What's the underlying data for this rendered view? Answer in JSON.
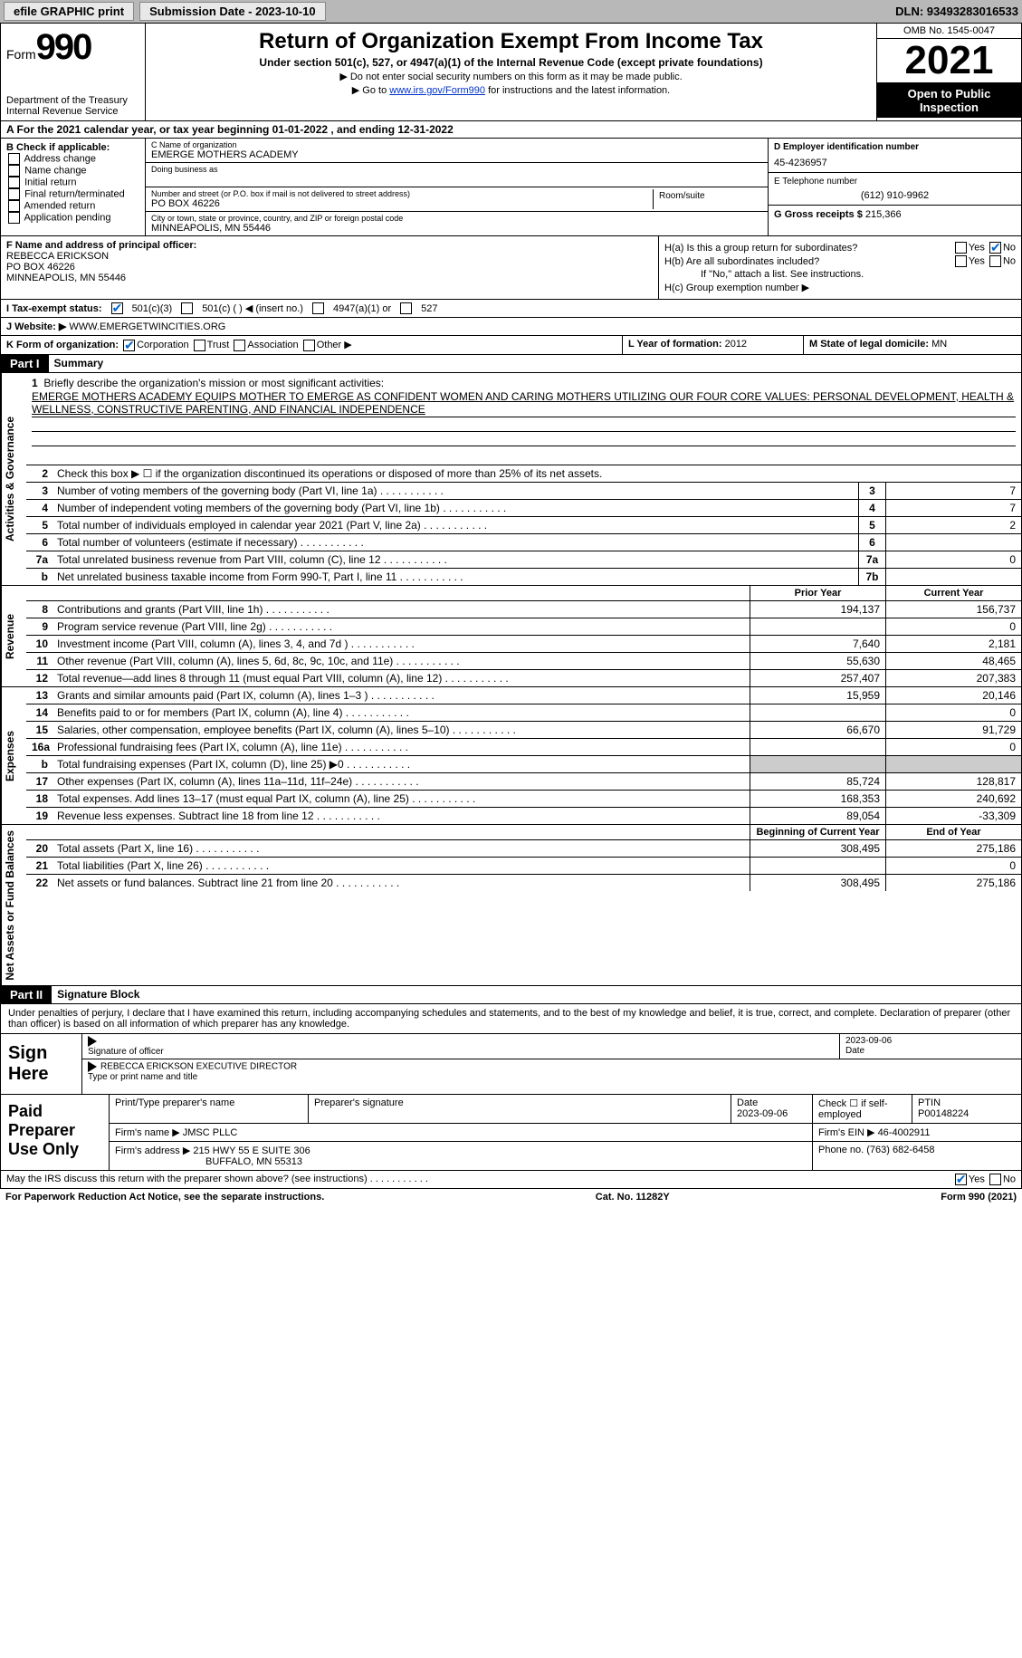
{
  "topbar": {
    "efile": "efile GRAPHIC print",
    "submission_label": "Submission Date - 2023-10-10",
    "dln_label": "DLN: 93493283016533"
  },
  "header": {
    "form_prefix": "Form",
    "form_number": "990",
    "dept": "Department of the Treasury\nInternal Revenue Service",
    "title": "Return of Organization Exempt From Income Tax",
    "subtitle": "Under section 501(c), 527, or 4947(a)(1) of the Internal Revenue Code (except private foundations)",
    "note1": "▶ Do not enter social security numbers on this form as it may be made public.",
    "note2_prefix": "▶ Go to ",
    "note2_link": "www.irs.gov/Form990",
    "note2_suffix": " for instructions and the latest information.",
    "omb": "OMB No. 1545-0047",
    "year": "2021",
    "open": "Open to Public Inspection"
  },
  "calendar_row": "A For the 2021 calendar year, or tax year beginning 01-01-2022    , and ending 12-31-2022",
  "box_b": {
    "label": "B Check if applicable:",
    "items": [
      "Address change",
      "Name change",
      "Initial return",
      "Final return/terminated",
      "Amended return",
      "Application pending"
    ]
  },
  "box_c": {
    "name_label": "C Name of organization",
    "org_name": "EMERGE MOTHERS ACADEMY",
    "dba_label": "Doing business as",
    "addr_label": "Number and street (or P.O. box if mail is not delivered to street address)",
    "room_label": "Room/suite",
    "addr": "PO BOX 46226",
    "city_label": "City or town, state or province, country, and ZIP or foreign postal code",
    "city": "MINNEAPOLIS, MN  55446"
  },
  "box_d": {
    "ein_label": "D Employer identification number",
    "ein": "45-4236957",
    "phone_label": "E Telephone number",
    "phone": "(612) 910-9962",
    "gross_label": "G Gross receipts $",
    "gross": "215,366"
  },
  "box_f": {
    "label": "F Name and address of principal officer:",
    "name": "REBECCA ERICKSON",
    "addr1": "PO BOX 46226",
    "addr2": "MINNEAPOLIS, MN  55446"
  },
  "box_h": {
    "ha": "H(a)  Is this a group return for subordinates?",
    "hb": "H(b)  Are all subordinates included?",
    "hb_note": "If \"No,\" attach a list. See instructions.",
    "hc": "H(c)  Group exemption number ▶"
  },
  "row_i": {
    "label": "I  Tax-exempt status:",
    "opts": [
      "501(c)(3)",
      "501(c) (   ) ◀ (insert no.)",
      "4947(a)(1) or",
      "527"
    ]
  },
  "row_j": {
    "label": "J  Website: ▶",
    "value": "WWW.EMERGETWINCITIES.ORG"
  },
  "row_k": {
    "label": "K Form of organization:",
    "opts": [
      "Corporation",
      "Trust",
      "Association",
      "Other ▶"
    ],
    "l_label": "L Year of formation:",
    "l_val": "2012",
    "m_label": "M State of legal domicile:",
    "m_val": "MN"
  },
  "part1_label": "Part I",
  "part1_title": "Summary",
  "mission": {
    "num": "1",
    "prompt": "Briefly describe the organization's mission or most significant activities:",
    "text": "EMERGE MOTHERS ACADEMY EQUIPS MOTHER TO EMERGE AS CONFIDENT WOMEN AND CARING MOTHERS UTILIZING OUR FOUR CORE VALUES: PERSONAL DEVELOPMENT, HEALTH & WELLNESS, CONSTRUCTIVE PARENTING, AND FINANCIAL INDEPENDENCE"
  },
  "line2": "Check this box ▶ ☐  if the organization discontinued its operations or disposed of more than 25% of its net assets.",
  "vlabels": {
    "gov": "Activities & Governance",
    "rev": "Revenue",
    "exp": "Expenses",
    "net": "Net Assets or Fund Balances"
  },
  "gov_lines": [
    {
      "n": "3",
      "d": "Number of voting members of the governing body (Part VI, line 1a)",
      "box": "3",
      "v": "7"
    },
    {
      "n": "4",
      "d": "Number of independent voting members of the governing body (Part VI, line 1b)",
      "box": "4",
      "v": "7"
    },
    {
      "n": "5",
      "d": "Total number of individuals employed in calendar year 2021 (Part V, line 2a)",
      "box": "5",
      "v": "2"
    },
    {
      "n": "6",
      "d": "Total number of volunteers (estimate if necessary)",
      "box": "6",
      "v": ""
    },
    {
      "n": "7a",
      "d": "Total unrelated business revenue from Part VIII, column (C), line 12",
      "box": "7a",
      "v": "0"
    },
    {
      "n": "b",
      "d": "Net unrelated business taxable income from Form 990-T, Part I, line 11",
      "box": "7b",
      "v": ""
    }
  ],
  "colhdr": {
    "prior": "Prior Year",
    "curr": "Current Year"
  },
  "rev_lines": [
    {
      "n": "8",
      "d": "Contributions and grants (Part VIII, line 1h)",
      "p": "194,137",
      "c": "156,737"
    },
    {
      "n": "9",
      "d": "Program service revenue (Part VIII, line 2g)",
      "p": "",
      "c": "0"
    },
    {
      "n": "10",
      "d": "Investment income (Part VIII, column (A), lines 3, 4, and 7d )",
      "p": "7,640",
      "c": "2,181"
    },
    {
      "n": "11",
      "d": "Other revenue (Part VIII, column (A), lines 5, 6d, 8c, 9c, 10c, and 11e)",
      "p": "55,630",
      "c": "48,465"
    },
    {
      "n": "12",
      "d": "Total revenue—add lines 8 through 11 (must equal Part VIII, column (A), line 12)",
      "p": "257,407",
      "c": "207,383"
    }
  ],
  "exp_lines": [
    {
      "n": "13",
      "d": "Grants and similar amounts paid (Part IX, column (A), lines 1–3 )",
      "p": "15,959",
      "c": "20,146"
    },
    {
      "n": "14",
      "d": "Benefits paid to or for members (Part IX, column (A), line 4)",
      "p": "",
      "c": "0"
    },
    {
      "n": "15",
      "d": "Salaries, other compensation, employee benefits (Part IX, column (A), lines 5–10)",
      "p": "66,670",
      "c": "91,729"
    },
    {
      "n": "16a",
      "d": "Professional fundraising fees (Part IX, column (A), line 11e)",
      "p": "",
      "c": "0"
    },
    {
      "n": "b",
      "d": "Total fundraising expenses (Part IX, column (D), line 25) ▶0",
      "p": "shaded",
      "c": "shaded"
    },
    {
      "n": "17",
      "d": "Other expenses (Part IX, column (A), lines 11a–11d, 11f–24e)",
      "p": "85,724",
      "c": "128,817"
    },
    {
      "n": "18",
      "d": "Total expenses. Add lines 13–17 (must equal Part IX, column (A), line 25)",
      "p": "168,353",
      "c": "240,692"
    },
    {
      "n": "19",
      "d": "Revenue less expenses. Subtract line 18 from line 12",
      "p": "89,054",
      "c": "-33,309"
    }
  ],
  "net_hdr": {
    "prior": "Beginning of Current Year",
    "curr": "End of Year"
  },
  "net_lines": [
    {
      "n": "20",
      "d": "Total assets (Part X, line 16)",
      "p": "308,495",
      "c": "275,186"
    },
    {
      "n": "21",
      "d": "Total liabilities (Part X, line 26)",
      "p": "",
      "c": "0"
    },
    {
      "n": "22",
      "d": "Net assets or fund balances. Subtract line 21 from line 20",
      "p": "308,495",
      "c": "275,186"
    }
  ],
  "part2_label": "Part II",
  "part2_title": "Signature Block",
  "sig_text": "Under penalties of perjury, I declare that I have examined this return, including accompanying schedules and statements, and to the best of my knowledge and belief, it is true, correct, and complete. Declaration of preparer (other than officer) is based on all information of which preparer has any knowledge.",
  "sign_here": "Sign Here",
  "sig_officer_label": "Signature of officer",
  "sig_date_label": "Date",
  "sig_date": "2023-09-06",
  "sig_name": "REBECCA ERICKSON  EXECUTIVE DIRECTOR",
  "sig_name_label": "Type or print name and title",
  "paid_label": "Paid Preparer Use Only",
  "paid": {
    "h1": "Print/Type preparer's name",
    "h2": "Preparer's signature",
    "h3_label": "Date",
    "h3": "2023-09-06",
    "h4": "Check ☐ if self-employed",
    "h5_label": "PTIN",
    "h5": "P00148224",
    "firm_label": "Firm's name   ▶",
    "firm": "JMSC PLLC",
    "ein_label": "Firm's EIN ▶",
    "ein": "46-4002911",
    "addr_label": "Firm's address ▶",
    "addr1": "215 HWY 55 E SUITE 306",
    "addr2": "BUFFALO, MN  55313",
    "phone_label": "Phone no.",
    "phone": "(763) 682-6458"
  },
  "discuss": "May the IRS discuss this return with the preparer shown above? (see instructions)",
  "foot}": "",
  "foot_left": "For Paperwork Reduction Act Notice, see the separate instructions.",
  "foot_mid": "Cat. No. 11282Y",
  "foot_right": "Form 990 (2021)"
}
